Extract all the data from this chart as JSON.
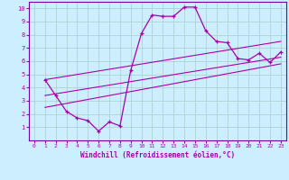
{
  "xlabel": "Windchill (Refroidissement éolien,°C)",
  "bg_color": "#cceeff",
  "grid_color": "#aacccc",
  "line_color": "#aa00aa",
  "spine_color": "#7700aa",
  "xlim": [
    -0.5,
    23.5
  ],
  "ylim": [
    0,
    10.5
  ],
  "xticks": [
    0,
    1,
    2,
    3,
    4,
    5,
    6,
    7,
    8,
    9,
    10,
    11,
    12,
    13,
    14,
    15,
    16,
    17,
    18,
    19,
    20,
    21,
    22,
    23
  ],
  "yticks": [
    1,
    2,
    3,
    4,
    5,
    6,
    7,
    8,
    9,
    10
  ],
  "curve1_x": [
    1,
    2,
    3,
    4,
    5,
    6,
    7,
    8,
    9,
    10,
    11,
    12,
    13,
    14,
    15,
    16,
    17,
    18,
    19,
    20,
    21,
    22,
    23
  ],
  "curve1_y": [
    4.6,
    3.4,
    2.2,
    1.7,
    1.5,
    0.7,
    1.4,
    1.1,
    5.3,
    8.1,
    9.5,
    9.4,
    9.4,
    10.1,
    10.1,
    8.3,
    7.5,
    7.4,
    6.2,
    6.1,
    6.6,
    5.9,
    6.7
  ],
  "line2_x": [
    1,
    23
  ],
  "line2_y": [
    4.6,
    7.5
  ],
  "line3_x": [
    1,
    23
  ],
  "line3_y": [
    3.4,
    6.3
  ],
  "line4_x": [
    1,
    23
  ],
  "line4_y": [
    2.5,
    5.8
  ]
}
